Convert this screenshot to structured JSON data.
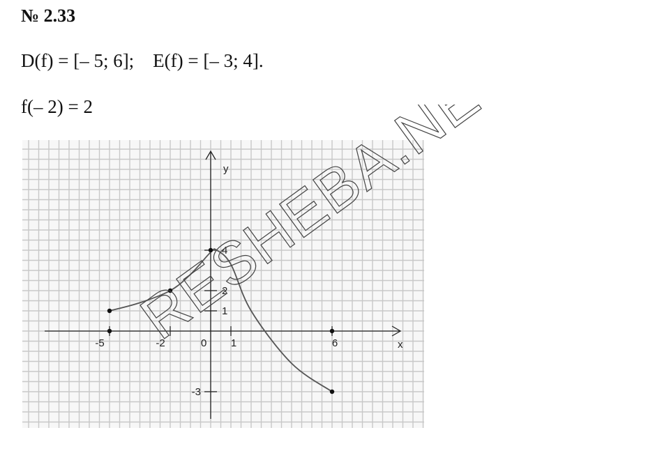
{
  "problem": {
    "number": "№ 2.33"
  },
  "formulas": {
    "domain_range": "D(f) = [– 5; 6];    E(f) = [– 3; 4].",
    "value": "f(– 2) = 2"
  },
  "chart_data": {
    "type": "line",
    "xlabel": "x",
    "ylabel": "y",
    "xlim": [
      -8.8,
      8.1
    ],
    "ylim": [
      -4.3,
      7.8
    ],
    "x_ticks": [
      "-5",
      "-2",
      "0",
      "1",
      "6"
    ],
    "y_ticks": [
      "4",
      "2",
      "1",
      "-3"
    ],
    "grid": true,
    "series": [
      {
        "points": [
          [
            -5,
            1
          ],
          [
            -3.5,
            1.4
          ],
          [
            -2,
            2
          ],
          [
            -1,
            2.8
          ],
          [
            0,
            3.9
          ],
          [
            0.3,
            4
          ],
          [
            1,
            3.3
          ],
          [
            2,
            1
          ],
          [
            4,
            -1.6
          ],
          [
            6,
            -3
          ]
        ]
      }
    ],
    "marked_points": [
      [
        -5,
        1
      ],
      [
        -2,
        2
      ],
      [
        0,
        4
      ],
      [
        -5,
        0
      ],
      [
        6,
        0
      ],
      [
        6,
        -3
      ]
    ]
  },
  "watermark": {
    "text": "RESHEBA.NET"
  },
  "colors": {
    "grid": "#c8c8c8",
    "axes": "#222222",
    "curve": "#555555",
    "paper": "#f7f7f7"
  }
}
